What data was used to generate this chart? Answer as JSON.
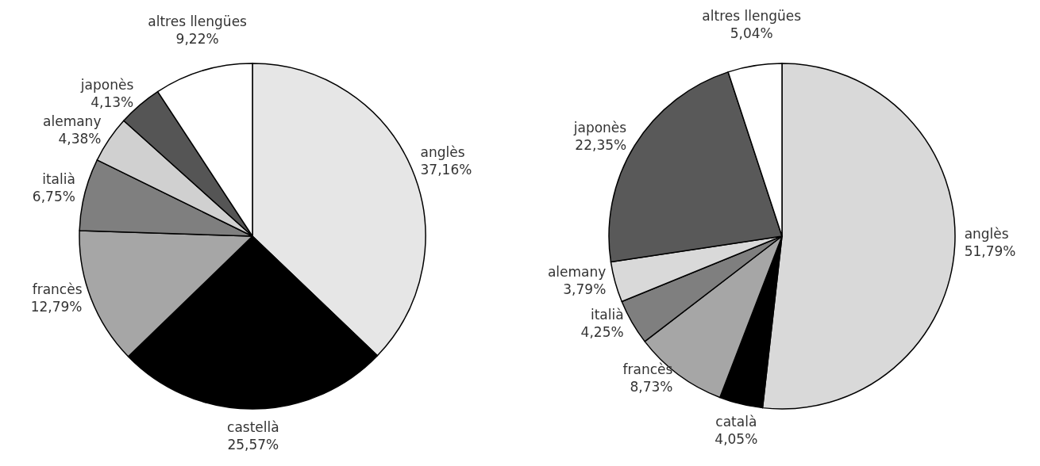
{
  "chart_data": [
    {
      "type": "pie",
      "categories": [
        "anglès",
        "castellà",
        "francès",
        "italià",
        "alemany",
        "japonès",
        "altres llengües"
      ],
      "values": [
        37.16,
        25.57,
        12.79,
        6.75,
        4.38,
        4.13,
        9.22
      ],
      "colors": [
        "#e6e6e6",
        "#000000",
        "#a6a6a6",
        "#7f7f7f",
        "#d0d0d0",
        "#555555",
        "#ffffff"
      ],
      "value_labels": [
        "37,16%",
        "25,57%",
        "12,79%",
        "6,75%",
        "4,38%",
        "4,13%",
        "9,22%"
      ]
    },
    {
      "type": "pie",
      "categories": [
        "anglès",
        "català",
        "francès",
        "italià",
        "alemany",
        "japonès",
        "altres llengües"
      ],
      "values": [
        51.79,
        4.05,
        8.73,
        4.25,
        3.79,
        22.35,
        5.04
      ],
      "colors": [
        "#d9d9d9",
        "#000000",
        "#a6a6a6",
        "#7f7f7f",
        "#d9d9d9",
        "#595959",
        "#ffffff"
      ],
      "value_labels": [
        "51,79%",
        "4,05%",
        "8,73%",
        "4,25%",
        "3,79%",
        "22,35%",
        "5,04%"
      ]
    }
  ]
}
